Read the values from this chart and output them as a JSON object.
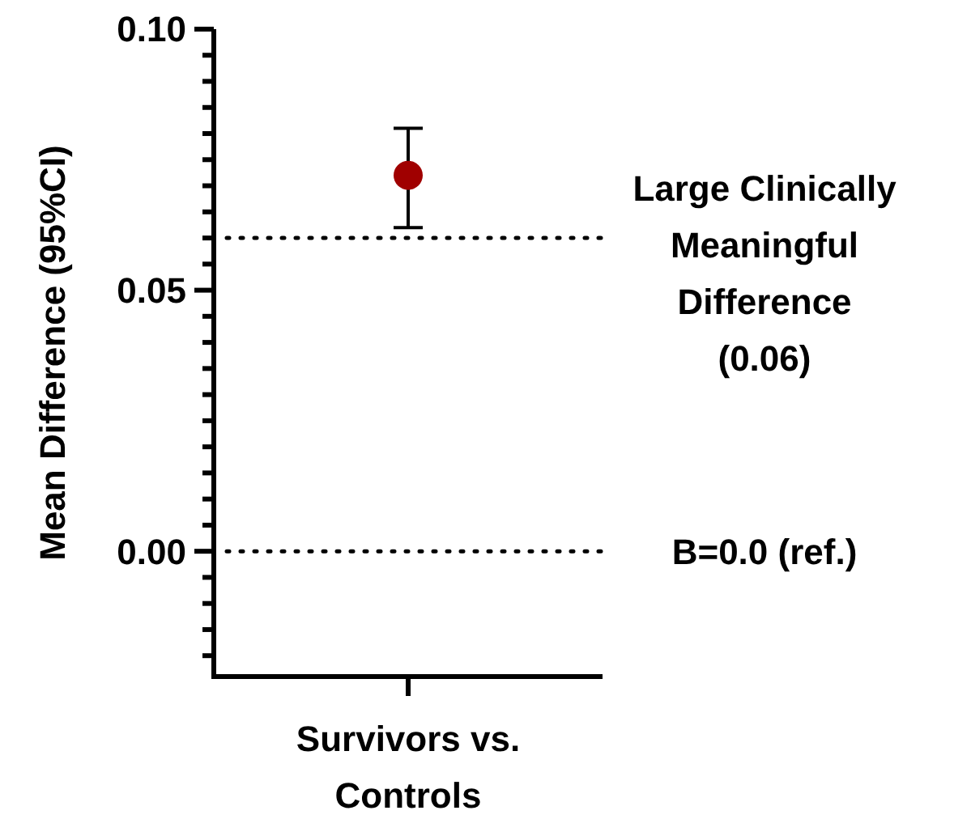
{
  "chart_data": {
    "type": "scatter",
    "ylabel": "Mean Difference (95%CI)",
    "categories": [
      "Survivors vs.\nControls"
    ],
    "series": [
      {
        "color": "#a00000",
        "values": [
          0.072
        ],
        "errors": [
          [
            0.062,
            0.081
          ]
        ]
      }
    ],
    "ylim": [
      -0.024,
      0.1
    ],
    "yticks": [
      {
        "value": -0.02,
        "label": null
      },
      {
        "value": -0.015,
        "label": null
      },
      {
        "value": -0.01,
        "label": null
      },
      {
        "value": -0.005,
        "label": null
      },
      "0.00",
      {
        "value": 0.005,
        "label": null
      },
      {
        "value": 0.01,
        "label": null
      },
      {
        "value": 0.015,
        "label": null
      },
      {
        "value": 0.02,
        "label": null
      },
      {
        "value": 0.025,
        "label": null
      },
      {
        "value": 0.03,
        "label": null
      },
      {
        "value": 0.035,
        "label": null
      },
      {
        "value": 0.04,
        "label": null
      },
      {
        "value": 0.045,
        "label": null
      },
      {
        "value": 0.05,
        "label": "0.05"
      },
      {
        "value": 0.055,
        "label": null
      },
      {
        "value": 0.06,
        "label": null
      },
      {
        "value": 0.065,
        "label": null
      },
      {
        "value": 0.07,
        "label": null
      },
      {
        "value": 0.075,
        "label": null
      },
      {
        "value": 0.08,
        "label": null
      },
      {
        "value": 0.085,
        "label": null
      },
      {
        "value": 0.09,
        "label": null
      },
      {
        "value": 0.095,
        "label": null
      },
      {
        "value": 0.1,
        "label": "0.10"
      }
    ],
    "ref_lines": [
      {
        "axis": "y",
        "value": 0.06,
        "label": "Large Clinically\nMeaningful\nDifference\n(0.06)",
        "line_style": "dotted",
        "color": "#000000"
      },
      {
        "axis": "y",
        "value": 0,
        "label": "B=0.0 (ref.)",
        "line_style": "dotted",
        "color": "#000000"
      }
    ],
    "marker": "circle"
  }
}
